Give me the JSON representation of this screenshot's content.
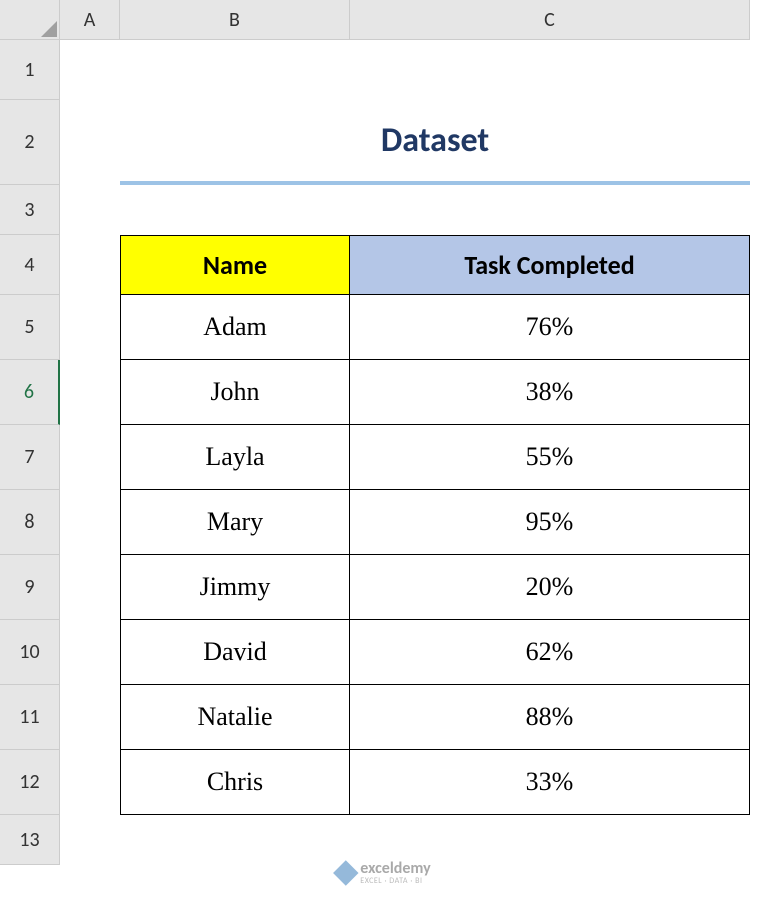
{
  "columns": [
    "A",
    "B",
    "C"
  ],
  "rows": [
    "1",
    "2",
    "3",
    "4",
    "5",
    "6",
    "7",
    "8",
    "9",
    "10",
    "11",
    "12",
    "13"
  ],
  "selected_row": "6",
  "title": "Dataset",
  "headers": {
    "name": "Name",
    "task": "Task Completed"
  },
  "data": [
    {
      "name": "Adam",
      "pct": "76%"
    },
    {
      "name": "John",
      "pct": "38%"
    },
    {
      "name": "Layla",
      "pct": "55%"
    },
    {
      "name": "Mary",
      "pct": "95%"
    },
    {
      "name": "Jimmy",
      "pct": "20%"
    },
    {
      "name": "David",
      "pct": "62%"
    },
    {
      "name": "Natalie",
      "pct": "88%"
    },
    {
      "name": "Chris",
      "pct": "33%"
    }
  ],
  "colors": {
    "title_text": "#203864",
    "title_underline": "#9dc3e6",
    "header_name_bg": "#ffff00",
    "header_task_bg": "#b4c6e7",
    "grid_header_bg": "#e6e6e6",
    "cell_border": "#000000",
    "excel_green": "#217346"
  },
  "watermark": {
    "brand": "exceldemy",
    "tagline": "EXCEL · DATA · BI"
  }
}
